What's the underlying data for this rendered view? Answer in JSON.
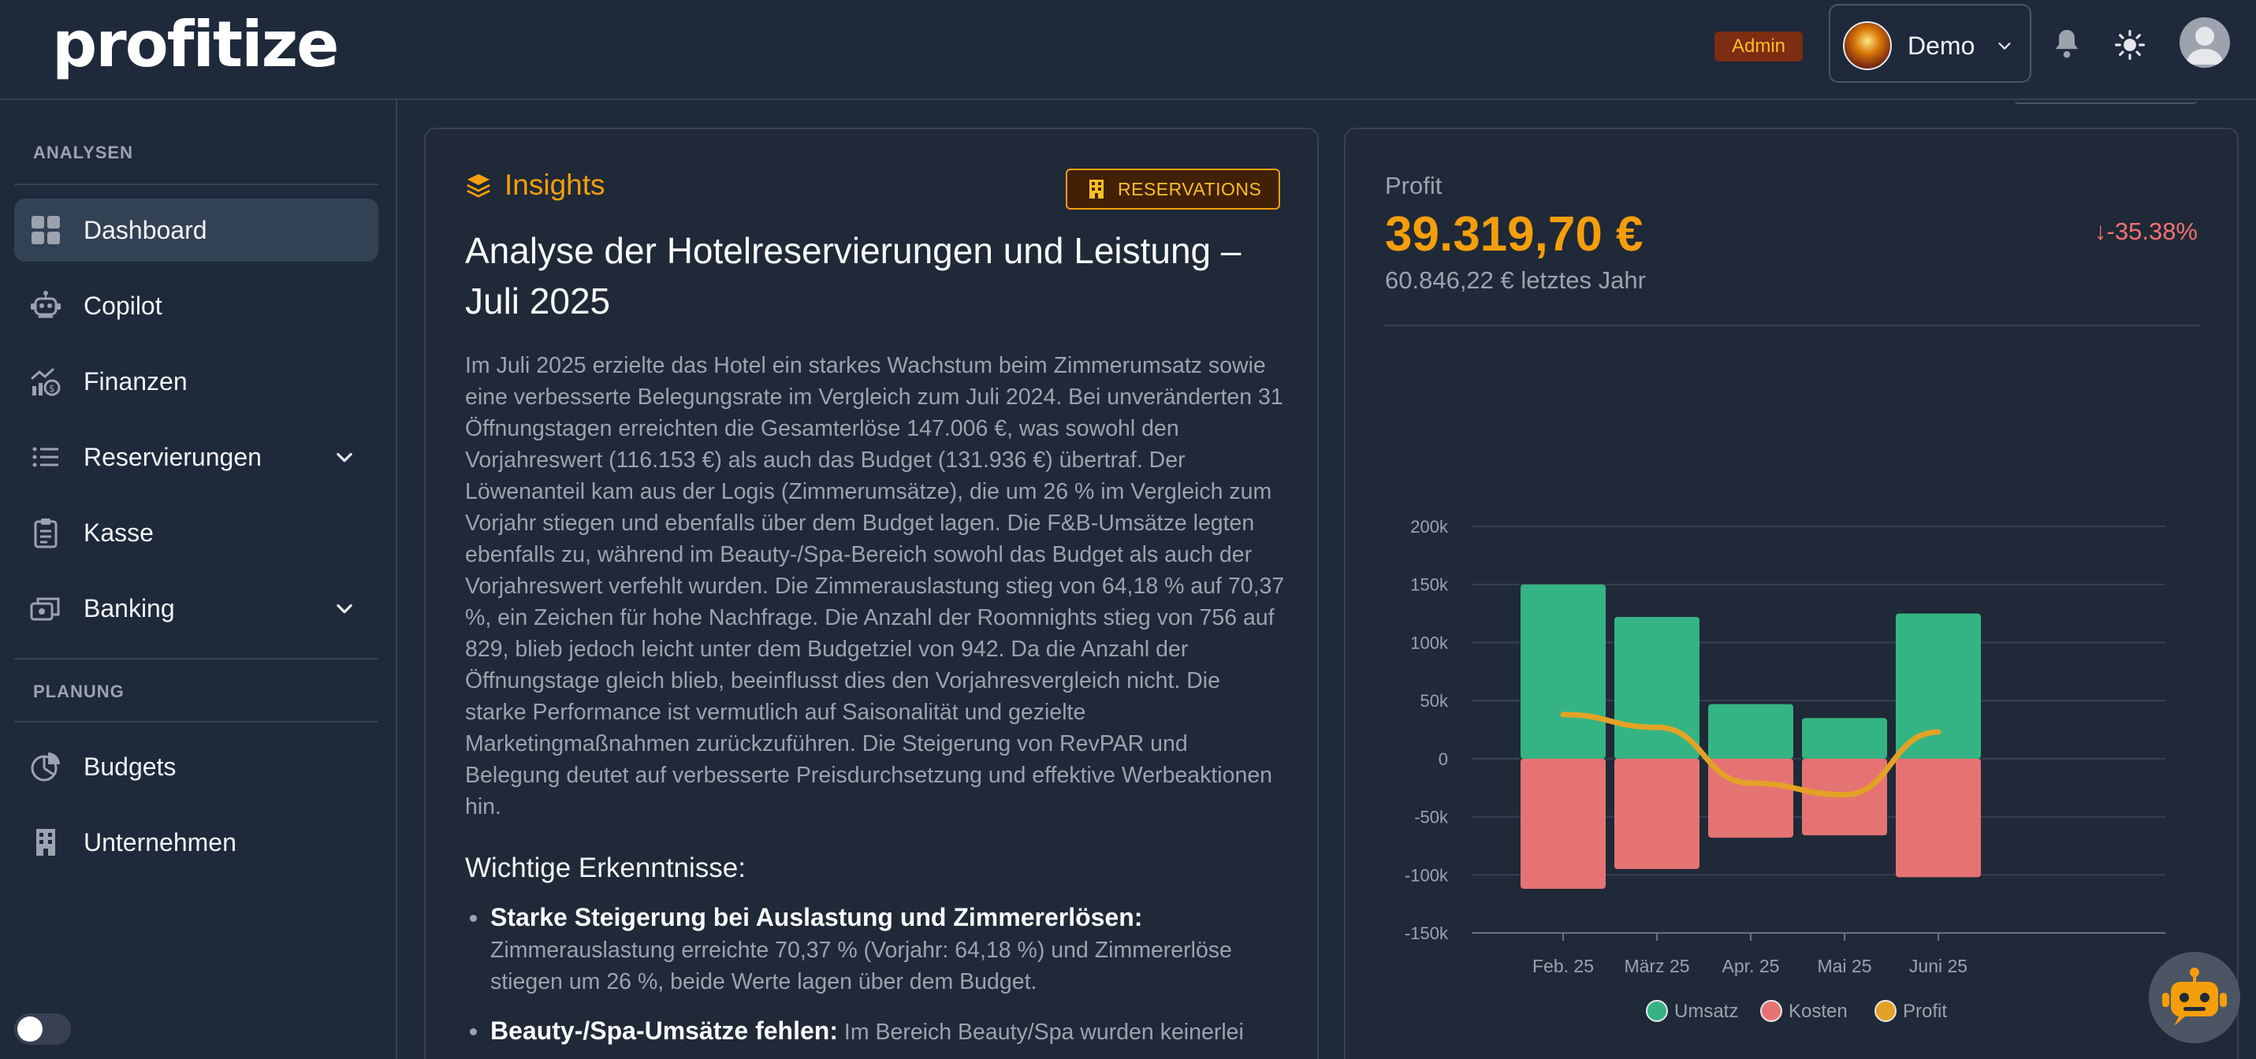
{
  "header": {
    "logo": "profitize",
    "admin_badge": "Admin",
    "user_name": "Demo"
  },
  "sidebar": {
    "sections": [
      {
        "label": "ANALYSEN"
      },
      {
        "label": "PLANUNG"
      }
    ],
    "items": [
      {
        "label": "Dashboard",
        "icon": "dashboard-icon",
        "active": true
      },
      {
        "label": "Copilot",
        "icon": "robot-icon"
      },
      {
        "label": "Finanzen",
        "icon": "finance-icon"
      },
      {
        "label": "Reservierungen",
        "icon": "list-icon",
        "expandable": true
      },
      {
        "label": "Kasse",
        "icon": "clipboard-icon"
      },
      {
        "label": "Banking",
        "icon": "banking-icon",
        "expandable": true
      },
      {
        "label": "Budgets",
        "icon": "pie-chart-icon"
      },
      {
        "label": "Unternehmen",
        "icon": "building-icon"
      }
    ]
  },
  "insights": {
    "label": "Insights",
    "badge": "RESERVATIONS",
    "title": "Analyse der Hotelreservierungen und Leistung – Juli 2025",
    "body": "Im Juli 2025 erzielte das Hotel ein starkes Wachstum beim Zimmerumsatz sowie eine verbesserte Belegungsrate im Vergleich zum Juli 2024. Bei unveränderten 31 Öffnungstagen erreichten die Gesamterlöse 147.006 €, was sowohl den Vorjahreswert (116.153 €) als auch das Budget (131.936 €) übertraf. Der Löwenanteil kam aus der Logis (Zimmerumsätze), die um 26 % im Vergleich zum Vorjahr stiegen und ebenfalls über dem Budget lagen. Die F&B-Umsätze legten ebenfalls zu, während im Beauty-/Spa-Bereich sowohl das Budget als auch der Vorjahreswert verfehlt wurden. Die Zimmerauslastung stieg von 64,18 % auf 70,37 %, ein Zeichen für hohe Nachfrage. Die Anzahl der Roomnights stieg von 756 auf 829, blieb jedoch leicht unter dem Budgetziel von 942. Da die Anzahl der Öffnungstage gleich blieb, beeinflusst dies den Vorjahresvergleich nicht. Die starke Performance ist vermutlich auf Saisonalität und gezielte Marketingmaßnahmen zurückzuführen. Die Steigerung von RevPAR und Belegung deutet auf verbesserte Preisdurchsetzung und effektive Werbeaktionen hin.",
    "subheading": "Wichtige Erkenntnisse:",
    "findings": [
      {
        "title": "Starke Steigerung bei Auslastung und Zimmererlösen:",
        "text": "Zimmerauslastung erreichte 70,37 % (Vorjahr: 64,18 %) und Zimmererlöse stiegen um 26 %, beide Werte lagen über dem Budget."
      },
      {
        "title": "Beauty-/Spa-Umsätze fehlen:",
        "text": "Im Bereich Beauty/Spa wurden keinerlei"
      }
    ]
  },
  "profit": {
    "label": "Profit",
    "value": "39.319,70 €",
    "last_year": "60.846,22 € letztes Jahr",
    "change": "↓-35.38%"
  },
  "colors": {
    "accent": "#f59e0b",
    "umsatz": "#34b484",
    "kosten": "#e57373",
    "profit": "#e3a225",
    "negative": "#f87171"
  },
  "chart_data": {
    "type": "bar",
    "categories": [
      "Feb. 25",
      "März 25",
      "Apr. 25",
      "Mai 25",
      "Juni 25"
    ],
    "series": [
      {
        "name": "Umsatz",
        "type": "bar",
        "values": [
          150000,
          122000,
          47000,
          35000,
          125000
        ]
      },
      {
        "name": "Kosten",
        "type": "bar",
        "values": [
          -112000,
          -95000,
          -68000,
          -66000,
          -102000
        ]
      },
      {
        "name": "Profit",
        "type": "line",
        "values": [
          38000,
          27000,
          -21000,
          -31000,
          23000
        ]
      }
    ],
    "ylim": [
      -150000,
      200000
    ],
    "yticks": [
      200000,
      150000,
      100000,
      50000,
      0,
      -50000,
      -100000,
      -150000
    ],
    "ytick_labels": [
      "200k",
      "150k",
      "100k",
      "50k",
      "0",
      "-50k",
      "-100k",
      "-150k"
    ],
    "legend": "bottom",
    "grid": true
  }
}
